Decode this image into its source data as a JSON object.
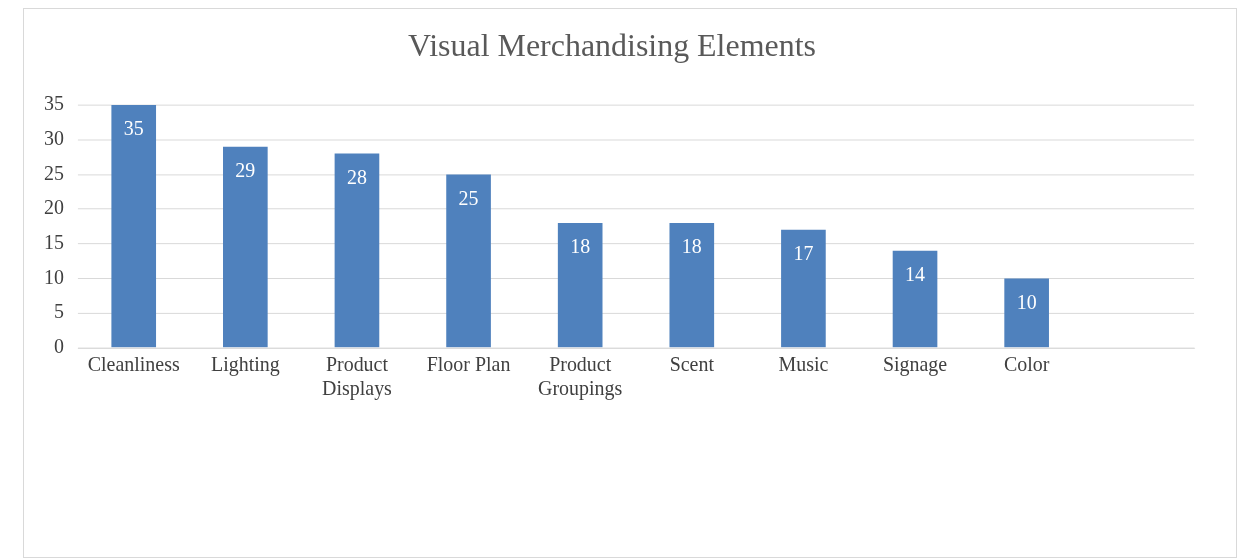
{
  "chart_data": {
    "type": "bar",
    "title": "Visual Merchandising Elements",
    "categories": [
      "Cleanliness",
      "Lighting",
      "Product Displays",
      "Floor Plan",
      "Product Groupings",
      "Scent",
      "Music",
      "Signage",
      "Color",
      null
    ],
    "values": [
      35,
      29,
      28,
      25,
      18,
      18,
      17,
      14,
      10,
      null
    ],
    "color": "#4f81bd",
    "ylim": [
      0,
      35
    ],
    "yticks": [
      0,
      5,
      10,
      15,
      20,
      25,
      30,
      35
    ],
    "grid": "y",
    "data_labels": true,
    "legend": false
  }
}
